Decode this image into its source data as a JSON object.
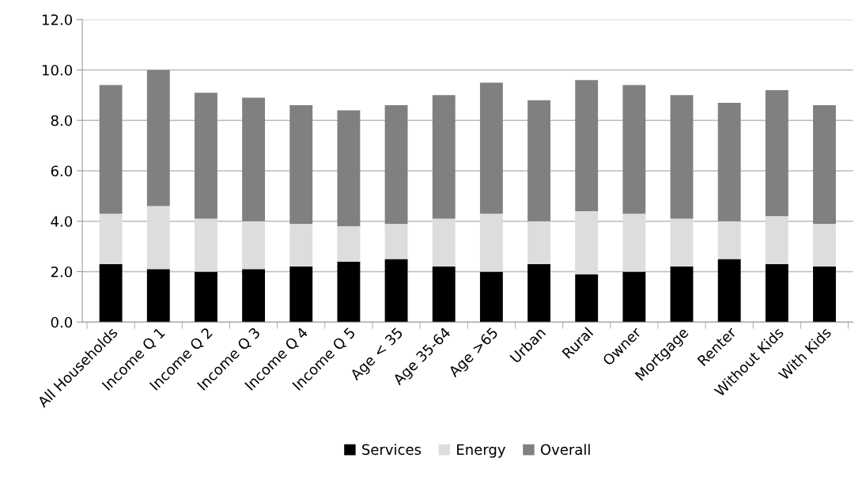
{
  "chart_data": {
    "type": "bar",
    "stacked": true,
    "categories": [
      "All Households",
      "Income Q 1",
      "Income Q 2",
      "Income Q 3",
      "Income Q 4",
      "Income Q 5",
      "Age < 35",
      "Age 35-64",
      "Age >65",
      "Urban",
      "Rural",
      "Owner",
      "Mortgage",
      "Renter",
      "Without Kids",
      "With Kids"
    ],
    "series": [
      {
        "name": "Services",
        "color": "#000000",
        "values": [
          2.3,
          2.1,
          2.0,
          2.1,
          2.2,
          2.4,
          2.5,
          2.2,
          2.0,
          2.3,
          1.9,
          2.0,
          2.2,
          2.5,
          2.3,
          2.2
        ]
      },
      {
        "name": "Energy",
        "color": "#dddddd",
        "values": [
          2.0,
          2.5,
          2.1,
          1.9,
          1.7,
          1.4,
          1.4,
          1.9,
          2.3,
          1.7,
          2.5,
          2.3,
          1.9,
          1.5,
          1.9,
          1.7
        ]
      },
      {
        "name": "Overall",
        "color": "#808080",
        "values": [
          5.1,
          5.4,
          5.0,
          4.9,
          4.7,
          4.6,
          4.7,
          4.9,
          5.2,
          4.8,
          5.2,
          5.1,
          4.9,
          4.7,
          5.0,
          4.7
        ]
      }
    ],
    "ylim": [
      0,
      12
    ],
    "yticks": [
      {
        "value": 0,
        "label": "0.0"
      },
      {
        "value": 2,
        "label": "2.0"
      },
      {
        "value": 4,
        "label": "4.0"
      },
      {
        "value": 6,
        "label": "6.0"
      },
      {
        "value": 8,
        "label": "8.0"
      },
      {
        "value": 10,
        "label": "10.0"
      },
      {
        "value": 12,
        "label": "12.0"
      }
    ],
    "grid": "y",
    "legend": "bottom"
  }
}
